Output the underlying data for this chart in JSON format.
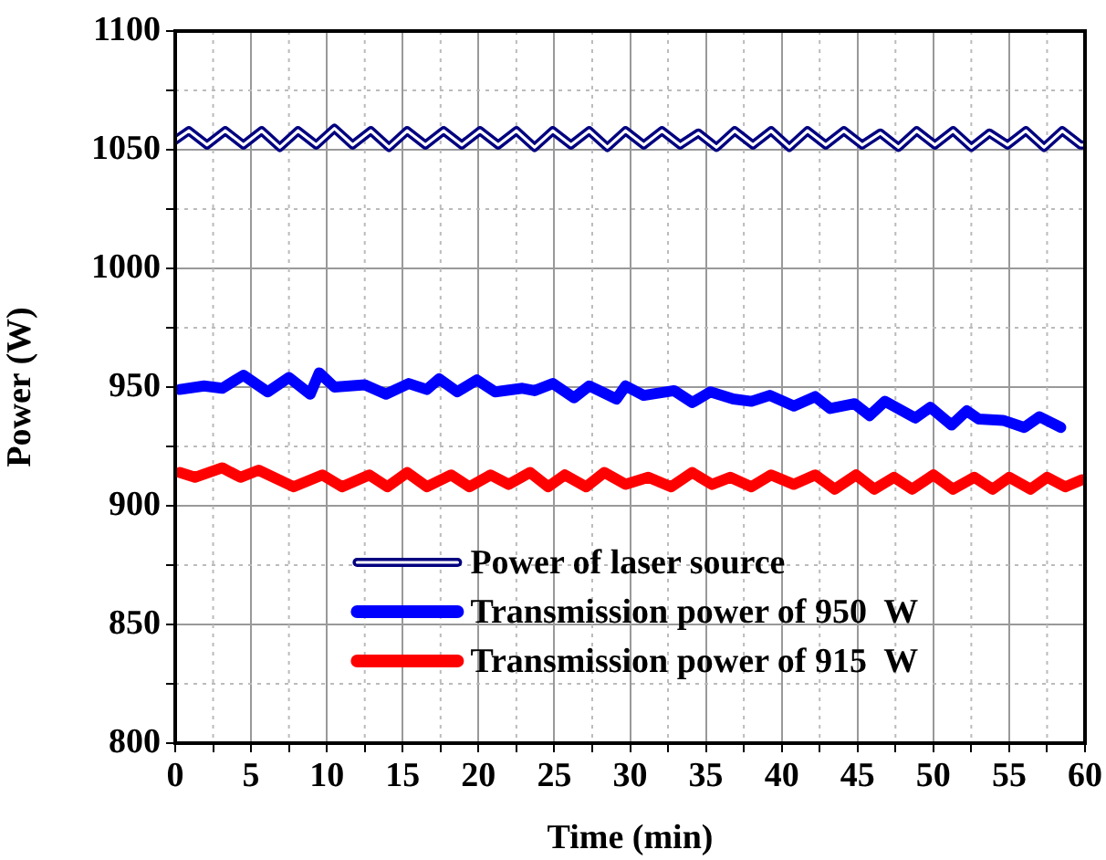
{
  "chart_data": {
    "type": "line",
    "xlabel": "Time (min)",
    "ylabel": "Power (W)",
    "xlim": [
      0,
      60
    ],
    "ylim": [
      800,
      1100
    ],
    "xticks": [
      0,
      {
        "value": 2.5,
        "label": null
      },
      5,
      {
        "value": 7.5,
        "label": null
      },
      10,
      {
        "value": 12.5,
        "label": null
      },
      15,
      {
        "value": 17.5,
        "label": null
      },
      20,
      {
        "value": 22.5,
        "label": null
      },
      25,
      {
        "value": 27.5,
        "label": null
      },
      30,
      {
        "value": 32.5,
        "label": null
      },
      35,
      {
        "value": 37.5,
        "label": null
      },
      40,
      {
        "value": 42.5,
        "label": null
      },
      45,
      {
        "value": 47.5,
        "label": null
      },
      50,
      {
        "value": 52.5,
        "label": null
      },
      55,
      {
        "value": 57.5,
        "label": null
      },
      60
    ],
    "yticks": [
      800,
      {
        "value": 825,
        "label": null
      },
      850,
      {
        "value": 875,
        "label": null
      },
      900,
      {
        "value": 925,
        "label": null
      },
      950,
      {
        "value": 975,
        "label": null
      },
      1000,
      {
        "value": 1025,
        "label": null
      },
      1050,
      {
        "value": 1075,
        "label": null
      },
      1100
    ],
    "grid": true,
    "legend": "bottom",
    "marker": "none",
    "line_style": "solid",
    "series": [
      {
        "name": "Power of laser source",
        "color": "#000080",
        "x": [
          0,
          0.9,
          2.1,
          3.3,
          4.5,
          5.7,
          6.9,
          8.1,
          9.3,
          10.5,
          11.7,
          12.9,
          14.1,
          15.3,
          16.5,
          17.7,
          18.9,
          20.1,
          21.3,
          22.5,
          23.7,
          24.9,
          26.1,
          27.3,
          28.5,
          29.7,
          30.9,
          32.1,
          33.3,
          34.5,
          35.7,
          36.9,
          38.1,
          39.3,
          40.5,
          41.7,
          42.9,
          44.1,
          45.3,
          46.5,
          47.7,
          48.9,
          50.1,
          51.3,
          52.5,
          53.7,
          54.9,
          56.1,
          57.3,
          58.5,
          59.7,
          60
        ],
        "values": [
          1054,
          1058,
          1052,
          1058,
          1052,
          1058,
          1051,
          1058,
          1052,
          1059,
          1052,
          1058,
          1051,
          1058,
          1052,
          1058,
          1052,
          1058,
          1052,
          1058,
          1051,
          1058,
          1052,
          1058,
          1051,
          1058,
          1052,
          1058,
          1052,
          1057,
          1051,
          1058,
          1052,
          1058,
          1051,
          1058,
          1052,
          1058,
          1052,
          1057,
          1051,
          1058,
          1052,
          1058,
          1051,
          1057,
          1052,
          1058,
          1051,
          1058,
          1052,
          1052
        ]
      },
      {
        "name": "Transmission power of 950  W",
        "color": "#0000ff",
        "x": [
          0.3,
          1.9,
          3.1,
          4.5,
          6.1,
          7.5,
          8.9,
          9.5,
          10.5,
          12.5,
          13.9,
          15.4,
          16.6,
          17.4,
          18.6,
          19.9,
          21.1,
          22.9,
          23.7,
          24.9,
          26.3,
          27.3,
          29.1,
          29.7,
          30.9,
          32.9,
          34.1,
          35.3,
          36.8,
          38.0,
          39.2,
          40.8,
          42.2,
          43.2,
          44.8,
          45.8,
          46.8,
          48.8,
          49.8,
          51.2,
          52.2,
          53.0,
          54.6,
          56.0,
          57.0,
          58.4
        ],
        "values": [
          949,
          950.5,
          949.5,
          955,
          948,
          954,
          947,
          956,
          950,
          951,
          947,
          951.5,
          949,
          953.5,
          948,
          953,
          948,
          949.5,
          948.5,
          951.5,
          945.5,
          950.5,
          945,
          950.5,
          946.5,
          948.5,
          943.5,
          948,
          945,
          944,
          946.5,
          942,
          946,
          941,
          943,
          938,
          944,
          937,
          941.5,
          934,
          940,
          936.5,
          936,
          933,
          937.5,
          933
        ]
      },
      {
        "name": "Transmission power of 915  W",
        "color": "#ff0000",
        "x": [
          0.3,
          1.3,
          3.1,
          4.3,
          5.5,
          7.8,
          9.7,
          11,
          12.8,
          14,
          15.3,
          16.6,
          18.2,
          19.4,
          20.8,
          22,
          23.4,
          24.6,
          25.7,
          27.1,
          28.3,
          29.7,
          31.2,
          32.7,
          34.1,
          35.4,
          36.6,
          38,
          39.3,
          40.8,
          42.2,
          43.5,
          44.9,
          46.1,
          47.4,
          48.6,
          50,
          51.3,
          52.7,
          53.9,
          55,
          56.4,
          57.5,
          58.7,
          59.8
        ],
        "values": [
          914,
          912,
          916,
          912,
          915,
          908,
          913,
          908,
          913,
          908,
          914,
          908,
          913,
          908,
          913,
          909,
          914,
          908,
          913,
          908,
          914,
          909,
          912,
          908,
          914,
          909,
          912,
          908,
          913,
          909,
          913,
          907,
          913,
          907,
          912,
          907,
          913,
          907,
          912,
          907,
          912,
          907,
          912,
          908,
          911
        ]
      }
    ]
  }
}
